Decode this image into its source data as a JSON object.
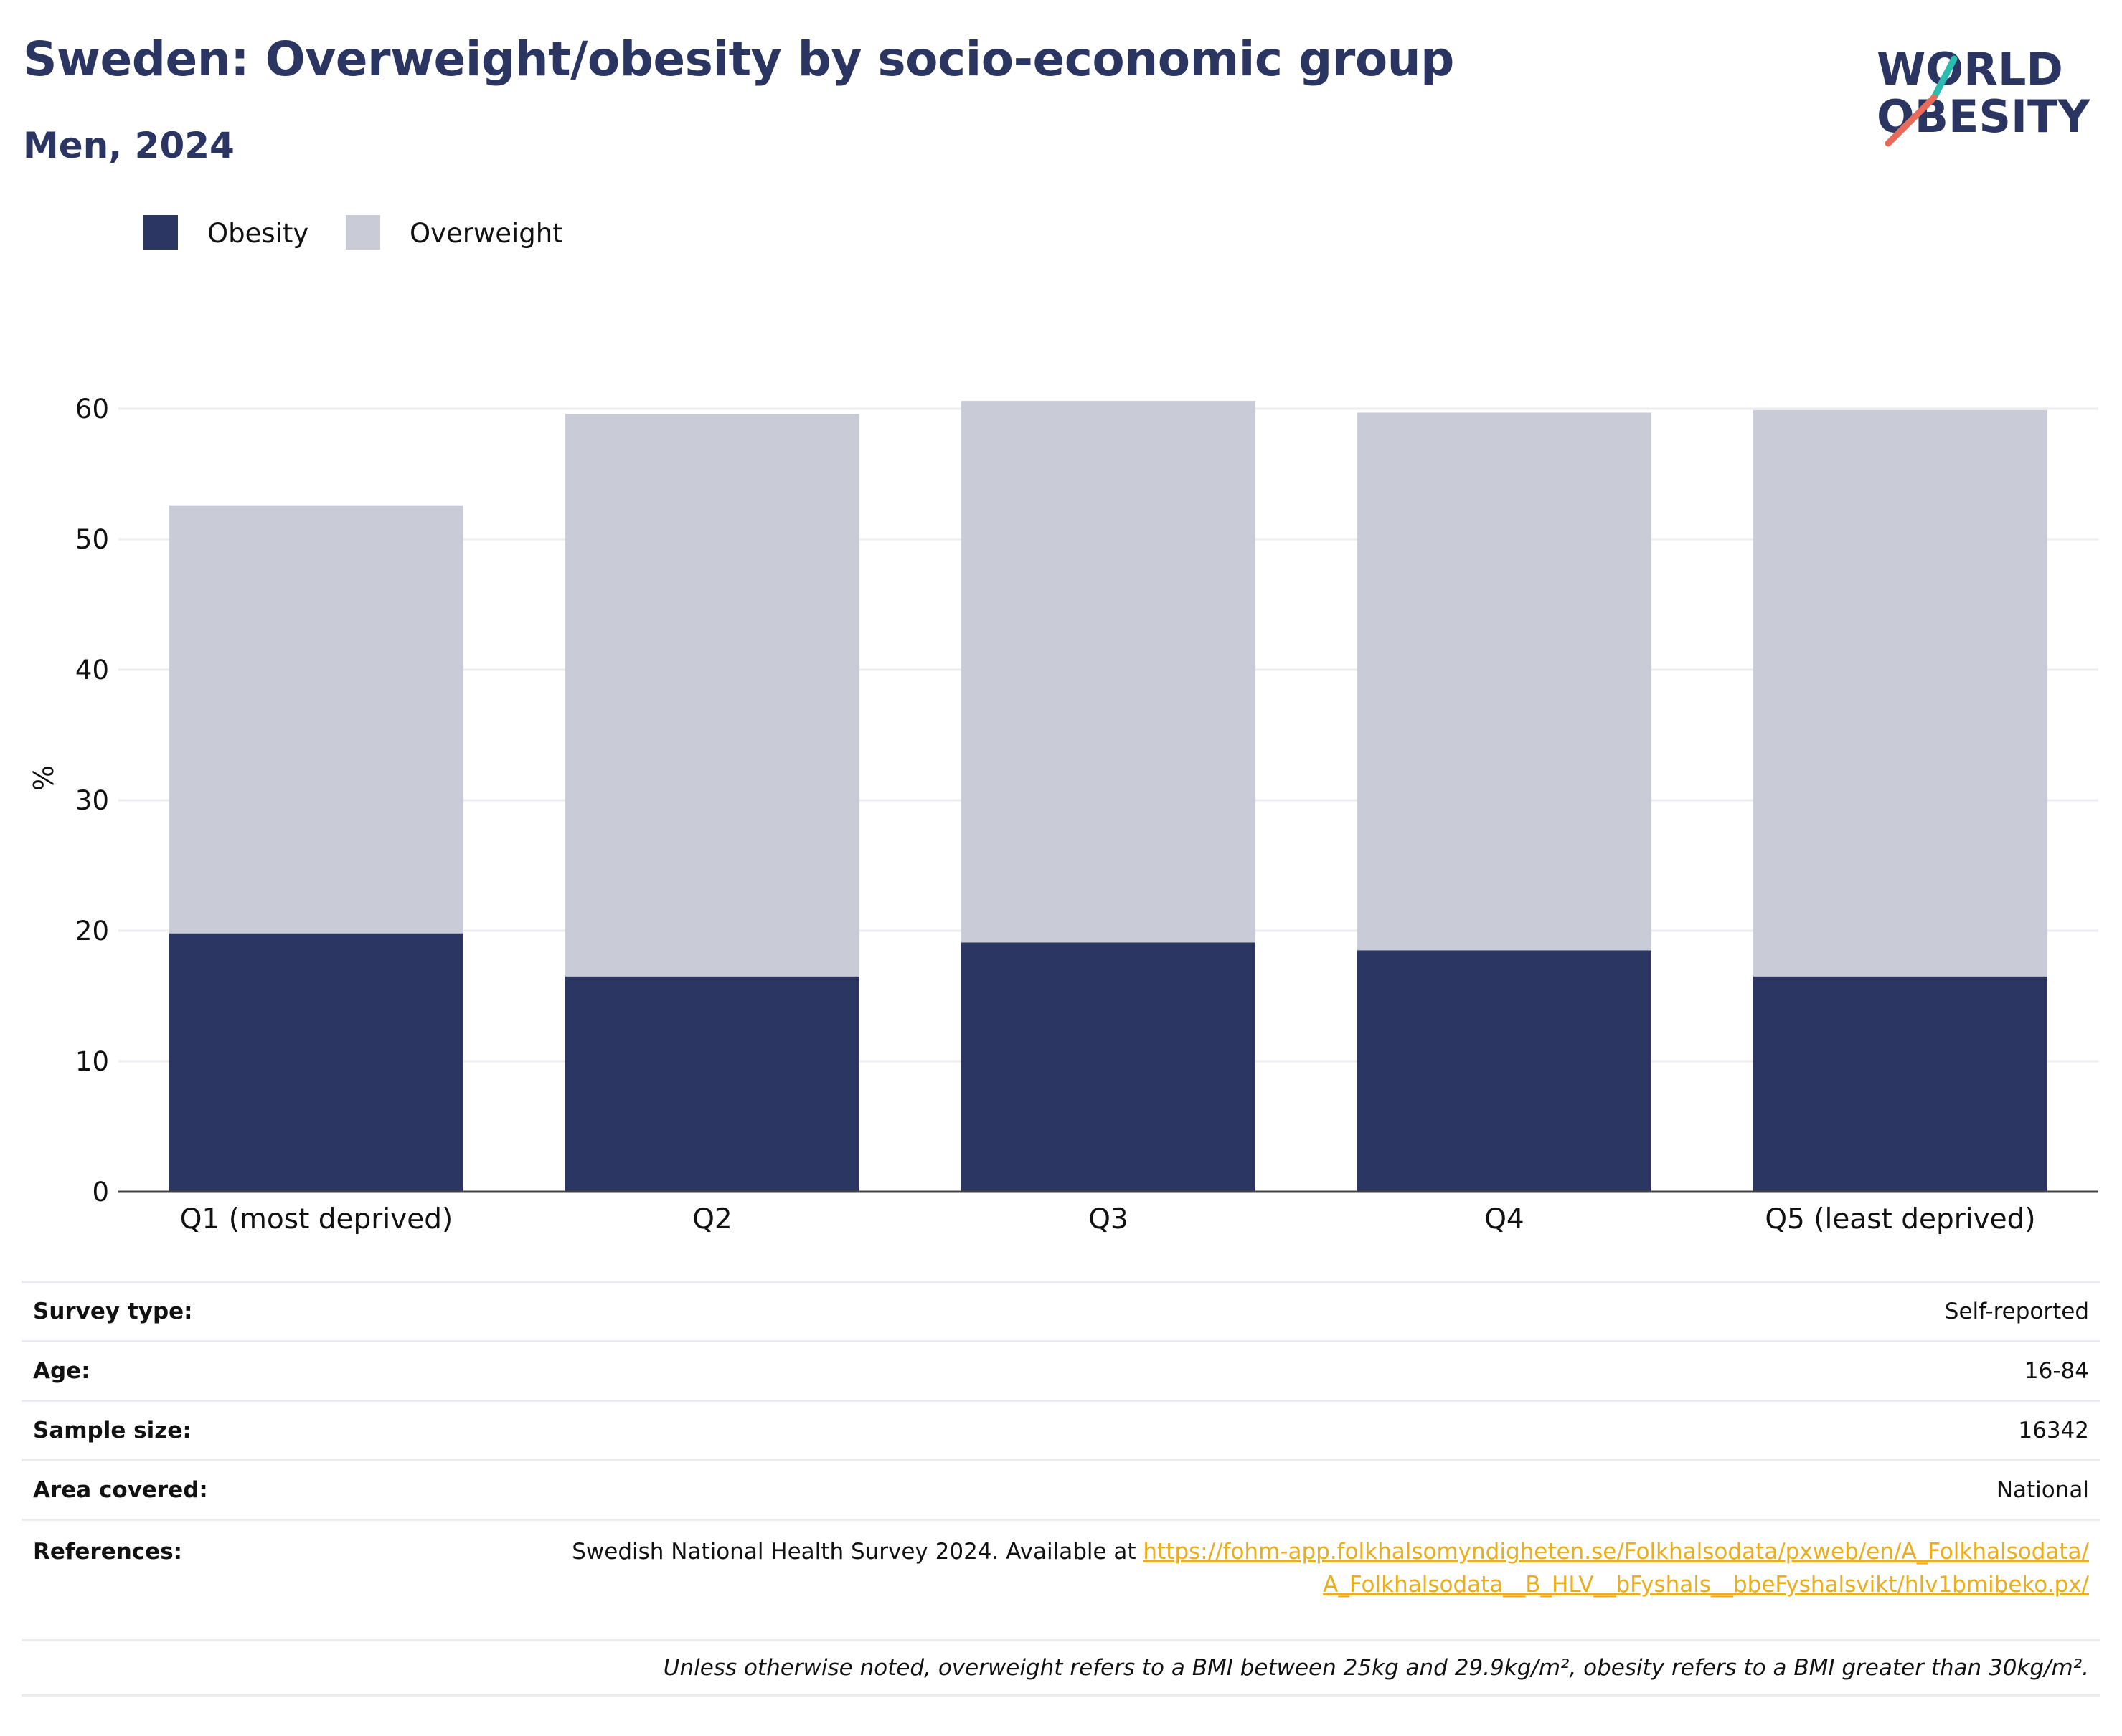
{
  "title": "Sweden: Overweight/obesity by socio-economic group",
  "subtitle": "Men, 2024",
  "logo": {
    "line1": "WORLD",
    "line2": "OBESITY"
  },
  "colors": {
    "obesity": "#2b3663",
    "overweight": "#c9cbd6",
    "title": "#2b3561",
    "link": "#e9ad1d",
    "grid": "#ebebf0"
  },
  "chart_data": {
    "type": "bar",
    "stacked": true,
    "categories": [
      "Q1 (most deprived)",
      "Q2",
      "Q3",
      "Q4",
      "Q5 (least deprived)"
    ],
    "series": [
      {
        "name": "Obesity",
        "values": [
          19.8,
          16.5,
          19.1,
          18.5,
          16.5
        ]
      },
      {
        "name": "Overweight",
        "values": [
          32.8,
          43.1,
          41.5,
          41.2,
          43.4
        ]
      }
    ],
    "ylabel": "%",
    "ylim": [
      0,
      60
    ],
    "yticks": [
      0,
      10,
      20,
      30,
      40,
      50,
      60
    ],
    "grid": true,
    "legend": "top-left"
  },
  "info": {
    "survey_type_label": "Survey type:",
    "survey_type": "Self-reported",
    "age_label": "Age:",
    "age": "16-84",
    "sample_size_label": "Sample size:",
    "sample_size": "16342",
    "area_label": "Area covered:",
    "area": "National",
    "references_label": "References:",
    "references_text": "Swedish National Health Survey 2024. Available at ",
    "references_link": "https://fohm-app.folkhalsomyndigheten.se/Folkhalsodata/pxweb/en/A_Folkhalsodata/A_Folkhalsodata__B_HLV__bFyshals__bbeFyshalsvikt/hlv1bmibeko.px/",
    "note": "Unless otherwise noted, overweight refers to a BMI between 25kg and 29.9kg/m², obesity refers to a BMI greater than 30kg/m²."
  }
}
